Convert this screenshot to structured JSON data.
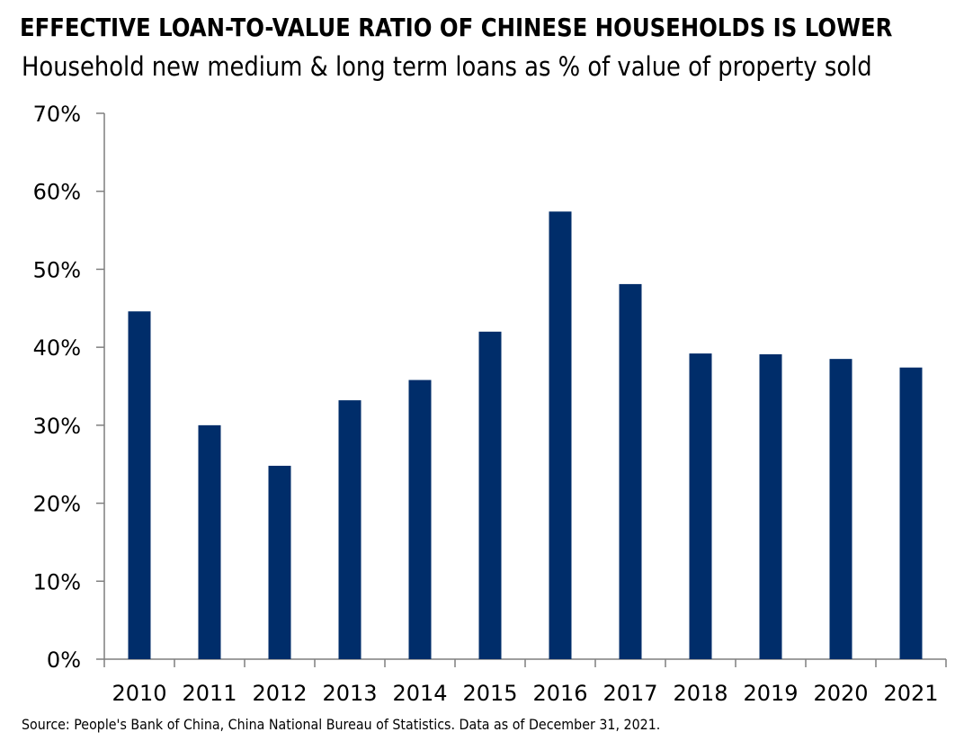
{
  "header": {
    "title": "EFFECTIVE LOAN-TO-VALUE RATIO OF CHINESE HOUSEHOLDS IS LOWER",
    "subtitle": "Household new medium & long term loans as % of value of property sold"
  },
  "footer": {
    "source": "Source: People's Bank of China, China National Bureau of Statistics. Data as of December 31, 2021."
  },
  "colors": {
    "bar": "#002d6a",
    "axis": "#7f7f7f"
  },
  "chart_data": {
    "type": "bar",
    "title": "EFFECTIVE LOAN-TO-VALUE RATIO OF CHINESE HOUSEHOLDS IS LOWER",
    "subtitle": "Household new medium & long term loans as % of value of property sold",
    "xlabel": "",
    "ylabel": "",
    "categories": [
      "2010",
      "2011",
      "2012",
      "2013",
      "2014",
      "2015",
      "2016",
      "2017",
      "2018",
      "2019",
      "2020",
      "2021"
    ],
    "values": [
      44.6,
      30.0,
      24.8,
      33.2,
      35.8,
      42.0,
      57.4,
      48.1,
      39.2,
      39.1,
      38.5,
      37.4
    ],
    "ylim": [
      0,
      70
    ],
    "yticks": [
      0,
      10,
      20,
      30,
      40,
      50,
      60,
      70
    ],
    "ytick_labels": [
      "0%",
      "10%",
      "20%",
      "30%",
      "40%",
      "50%",
      "60%",
      "70%"
    ],
    "grid": false,
    "legend": "none"
  }
}
